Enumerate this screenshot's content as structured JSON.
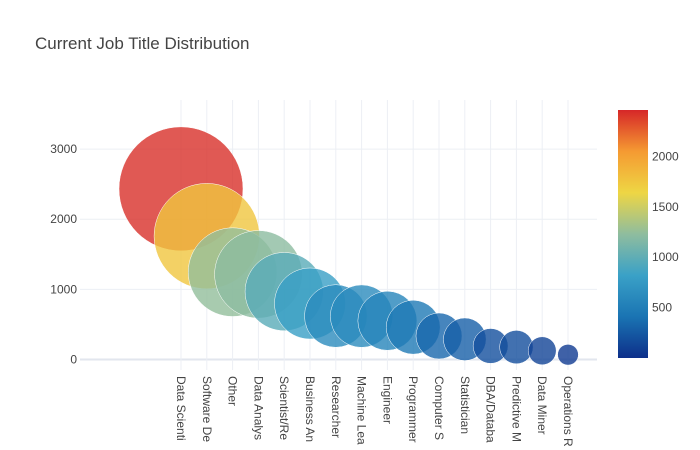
{
  "chart_data": {
    "type": "scatter",
    "title": "Current Job Title Distribution",
    "categories": [
      "Data Scientist",
      "Software Developer/Software Engineer",
      "Other",
      "Data Analyst",
      "Scientist/Researcher",
      "Business Analyst",
      "Researcher",
      "Machine Learning Engineer",
      "Engineer",
      "Programmer",
      "Computer Scientist",
      "Statistician",
      "DBA/Database Engineer",
      "Predictive Modeler",
      "Data Miner",
      "Operations Research Practitioner"
    ],
    "tick_labels": [
      "Data Scienti",
      "Software De",
      "Other",
      "Data Analys",
      "Scientist/Re",
      "Business An",
      "Researcher",
      "Machine Lea",
      "Engineer",
      "Programmer",
      "Computer S",
      "Statistician",
      "DBA/Databa",
      "Predictive M",
      "Data Miner",
      "Operations R"
    ],
    "values": [
      2433,
      1759,
      1245,
      1214,
      968,
      798,
      620,
      618,
      552,
      460,
      335,
      288,
      193,
      177,
      124,
      68
    ],
    "ylim": [
      -150,
      3700
    ],
    "yticks": [
      0,
      1000,
      2000,
      3000
    ],
    "colorscale": [
      "#0d2f8a",
      "#1a74b3",
      "#3aa1c7",
      "#8fbd9e",
      "#eed644",
      "#f59a32",
      "#d62728"
    ],
    "colorbar": {
      "min": 0,
      "max": 2460,
      "ticks": [
        500,
        1000,
        1500,
        2000
      ]
    },
    "grid": true,
    "legend": "colorbar-right"
  }
}
